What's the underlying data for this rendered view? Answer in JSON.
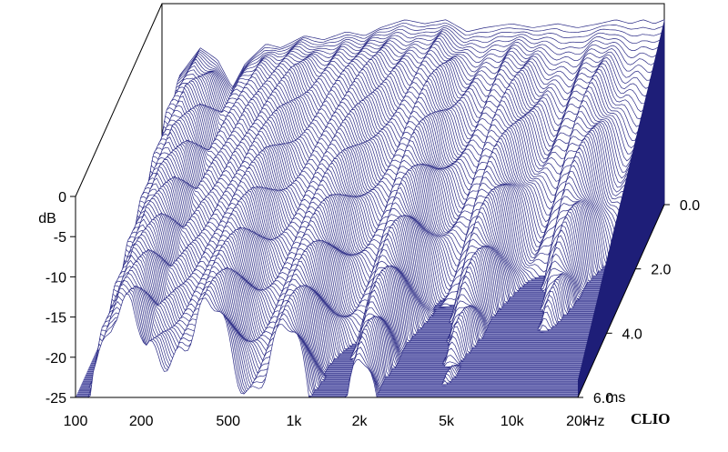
{
  "chart_data": {
    "type": "area",
    "subtype": "cumulative-spectral-decay-waterfall",
    "x_axis": {
      "scale": "log",
      "unit": "Hz",
      "range": [
        100,
        20000
      ],
      "ticks": [
        "100",
        "200",
        "500",
        "1k",
        "2k",
        "5k",
        "10k",
        "20k"
      ],
      "tick_values": [
        100,
        200,
        500,
        1000,
        2000,
        5000,
        10000,
        20000
      ]
    },
    "y_axis": {
      "label": "dB",
      "range": [
        -25,
        0
      ],
      "ticks": [
        "0",
        "-5",
        "-10",
        "-15",
        "-20",
        "-25"
      ],
      "tick_values": [
        0,
        -5,
        -10,
        -15,
        -20,
        -25
      ]
    },
    "z_axis": {
      "unit": "ms",
      "range": [
        0,
        6
      ],
      "ticks": [
        "0.0",
        "2.0",
        "4.0",
        "6.0"
      ],
      "tick_values": [
        0,
        2,
        4,
        6
      ]
    },
    "hz_unit_label": "Hz",
    "ms_unit_label": "ms",
    "watermark": "CLIO",
    "grid": false,
    "colors": {
      "trace": "#2a2a85",
      "floor": "#8c8cc8",
      "wall": "#1e1e78"
    },
    "slice_count": 120,
    "initial_response": [
      {
        "hz": 100,
        "db": -27
      },
      {
        "hz": 120,
        "db": -9
      },
      {
        "hz": 150,
        "db": -5.5
      },
      {
        "hz": 180,
        "db": -7
      },
      {
        "hz": 210,
        "db": -10.5
      },
      {
        "hz": 240,
        "db": -7.5
      },
      {
        "hz": 300,
        "db": -5
      },
      {
        "hz": 350,
        "db": -5.5
      },
      {
        "hz": 450,
        "db": -4
      },
      {
        "hz": 550,
        "db": -4.5
      },
      {
        "hz": 700,
        "db": -3.5
      },
      {
        "hz": 850,
        "db": -4
      },
      {
        "hz": 1000,
        "db": -3
      },
      {
        "hz": 1300,
        "db": -2
      },
      {
        "hz": 1600,
        "db": -2.5
      },
      {
        "hz": 2000,
        "db": -2
      },
      {
        "hz": 2500,
        "db": -3.5
      },
      {
        "hz": 3000,
        "db": -3
      },
      {
        "hz": 4000,
        "db": -2.5
      },
      {
        "hz": 5000,
        "db": -3
      },
      {
        "hz": 6500,
        "db": -2.5
      },
      {
        "hz": 8000,
        "db": -3
      },
      {
        "hz": 10000,
        "db": -2.5
      },
      {
        "hz": 12000,
        "db": -2
      },
      {
        "hz": 14000,
        "db": -2.5
      },
      {
        "hz": 16000,
        "db": -2
      },
      {
        "hz": 18000,
        "db": -2.5
      },
      {
        "hz": 20000,
        "db": -2
      }
    ]
  }
}
